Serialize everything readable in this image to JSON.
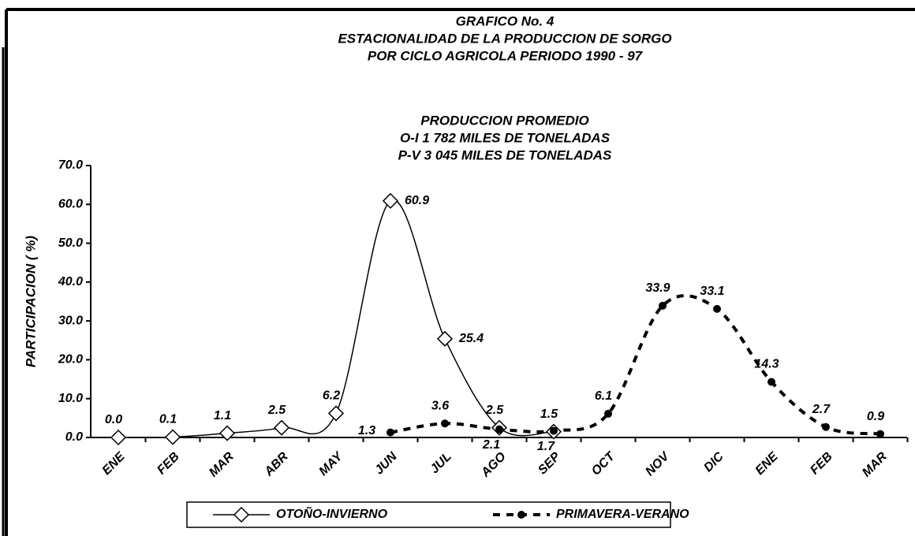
{
  "chart_data": {
    "type": "line",
    "title": [
      "GRAFICO No. 4",
      "ESTACIONALIDAD DE LA PRODUCCION DE SORGO",
      "POR CICLO AGRICOLA PERIODO 1990 - 97"
    ],
    "subtitle": [
      "PRODUCCION PROMEDIO",
      "O-I 1 782 MILES DE TONELADAS",
      "P-V 3 045 MILES DE TONELADAS"
    ],
    "y_label": "PARTICIPACION ( %)",
    "categories": [
      "ENE",
      "FEB",
      "MAR",
      "ABR",
      "MAY",
      "JUN",
      "JUL",
      "AGO",
      "SEP",
      "OCT",
      "NOV",
      "DIC",
      "ENE",
      "FEB",
      "MAR"
    ],
    "series": [
      {
        "name": "OTOÑO-INVIERNO",
        "color": "#000000",
        "marker": "diamond",
        "line_style": "solid",
        "values": [
          0,
          0.1,
          1.1,
          2.5,
          6.2,
          60.9,
          25.4,
          2.5,
          1.5,
          null,
          null,
          null,
          null,
          null,
          null
        ],
        "value_labels": [
          "0.0",
          "0.1",
          "1.1",
          "2.5",
          "6.2",
          "60.9",
          "25.4",
          "2.5",
          "1.5",
          null,
          null,
          null,
          null,
          null,
          null
        ]
      },
      {
        "name": "PRIMAVERA-VERANO",
        "color": "#000000",
        "marker": "circle",
        "line_style": "dashed",
        "values": [
          null,
          null,
          null,
          null,
          null,
          1.3,
          3.6,
          2.1,
          1.7,
          6.1,
          33.9,
          33.1,
          14.3,
          2.7,
          0.9
        ],
        "value_labels": [
          null,
          null,
          null,
          null,
          null,
          "1.3",
          "3.6",
          "2.1",
          "1.7",
          "6.1",
          "33.9",
          "33.1",
          "14.3",
          "2.7",
          "0.9"
        ]
      }
    ],
    "ylim": [
      0,
      70
    ],
    "yticks": [
      {
        "value": 0,
        "label": "0.0"
      },
      {
        "value": 10,
        "label": "10.0"
      },
      {
        "value": 20,
        "label": "20.0"
      },
      {
        "value": 30,
        "label": "30.0"
      },
      {
        "value": 40,
        "label": "40.0"
      },
      {
        "value": 50,
        "label": "50.0"
      },
      {
        "value": 60,
        "label": "60.0"
      },
      {
        "value": 70,
        "label": "70.0"
      }
    ],
    "grid": false,
    "legend": "bottom"
  }
}
